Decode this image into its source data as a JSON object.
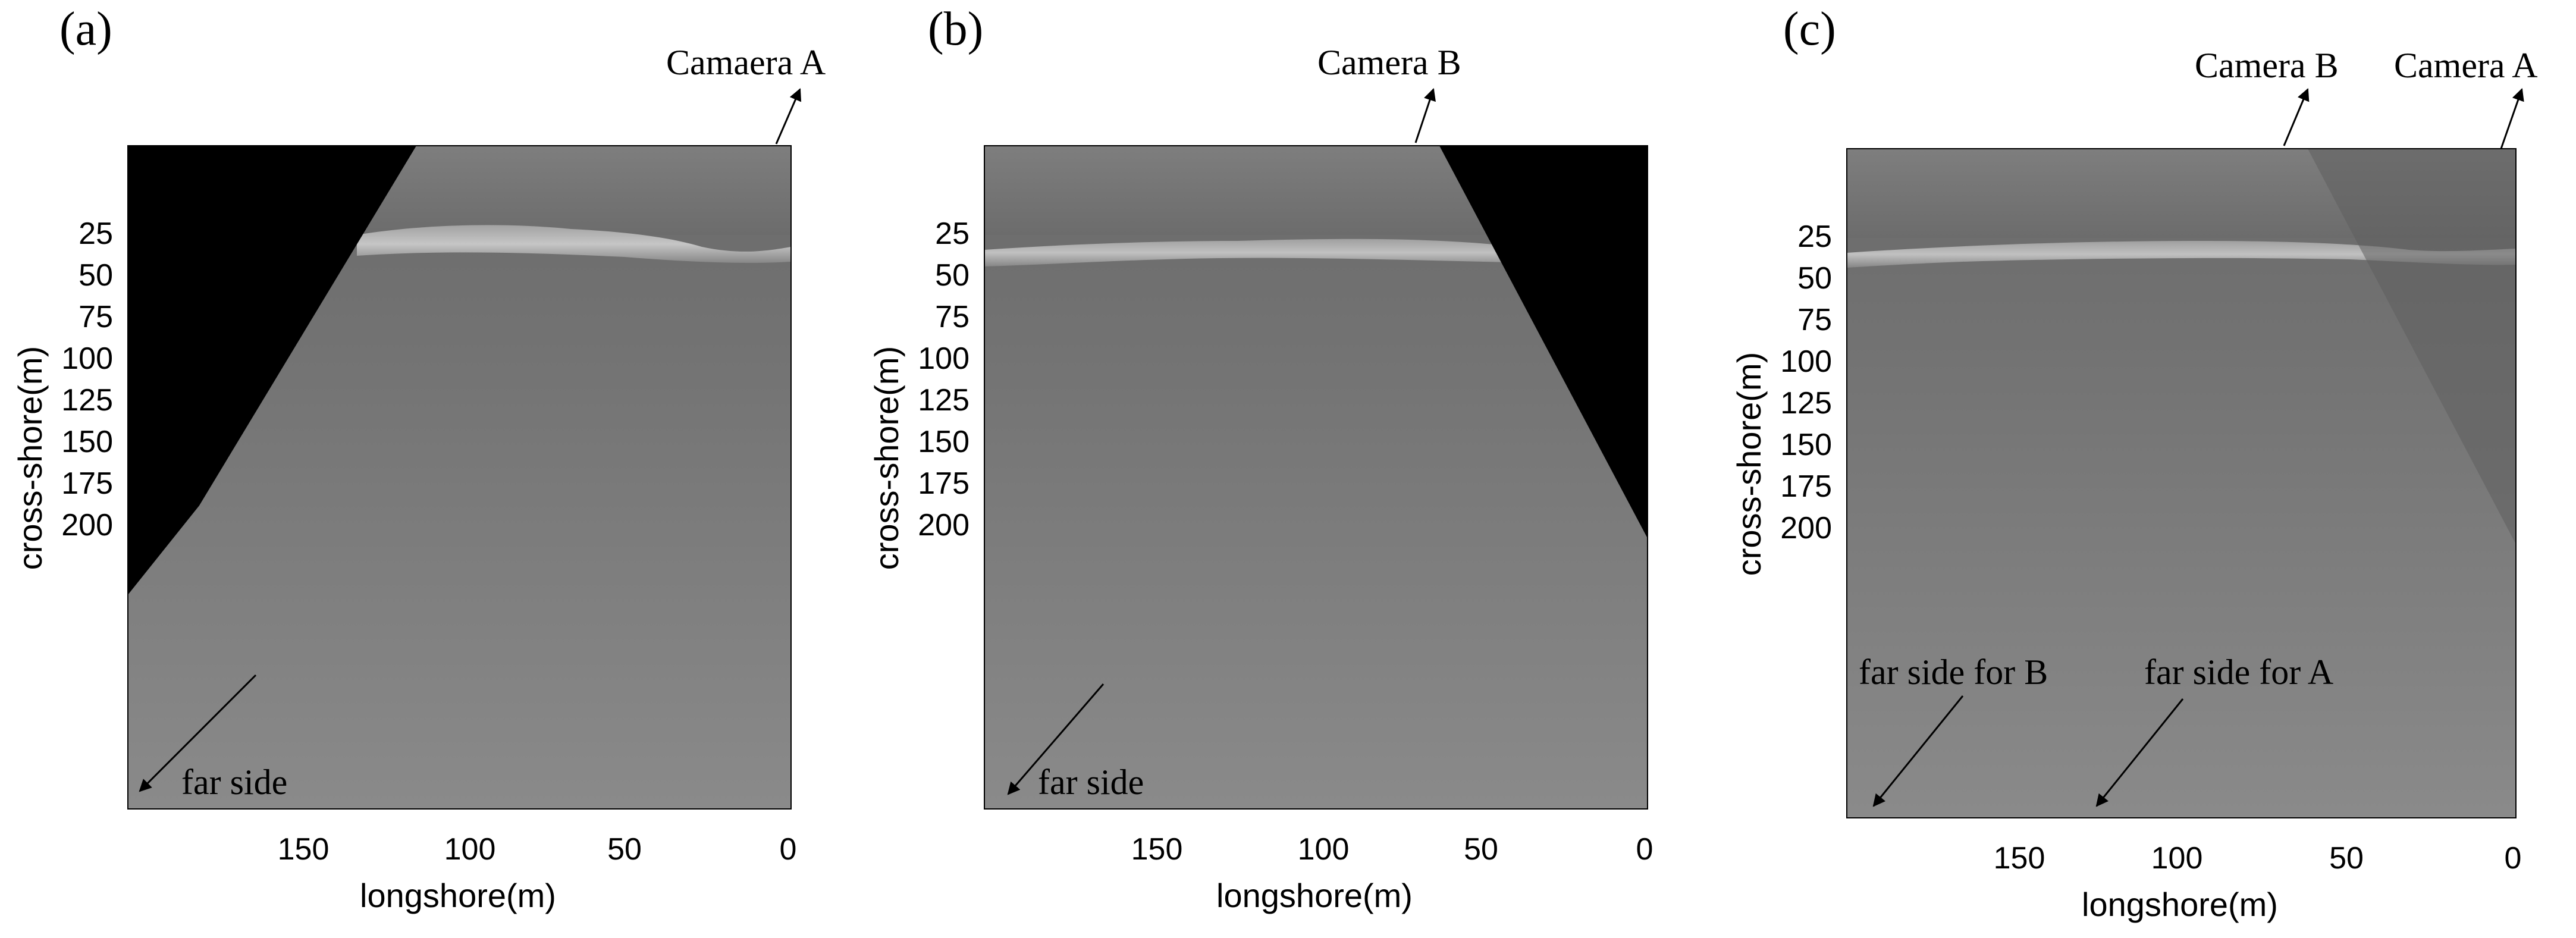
{
  "panels": [
    {
      "label": "(a)",
      "camera_annotations": [
        "Camaera A"
      ],
      "side_annotations": [
        "far side"
      ],
      "xlabel": "longshore(m)",
      "ylabel": "cross-shore(m)",
      "x_ticks": [
        "150",
        "100",
        "50",
        "0"
      ],
      "y_ticks": [
        "25",
        "50",
        "75",
        "100",
        "125",
        "150",
        "175",
        "200"
      ]
    },
    {
      "label": "(b)",
      "camera_annotations": [
        "Camera B"
      ],
      "side_annotations": [
        "far side"
      ],
      "xlabel": "longshore(m)",
      "ylabel": "cross-shore(m)",
      "x_ticks": [
        "150",
        "100",
        "50",
        "0"
      ],
      "y_ticks": [
        "25",
        "50",
        "75",
        "100",
        "125",
        "150",
        "175",
        "200"
      ]
    },
    {
      "label": "(c)",
      "camera_annotations": [
        "Camera B",
        "Camera A"
      ],
      "side_annotations": [
        "far side for B",
        "far side for A"
      ],
      "xlabel": "longshore(m)",
      "ylabel": "cross-shore(m)",
      "x_ticks": [
        "150",
        "100",
        "50",
        "0"
      ],
      "y_ticks": [
        "25",
        "50",
        "75",
        "100",
        "125",
        "150",
        "175",
        "200"
      ]
    }
  ]
}
